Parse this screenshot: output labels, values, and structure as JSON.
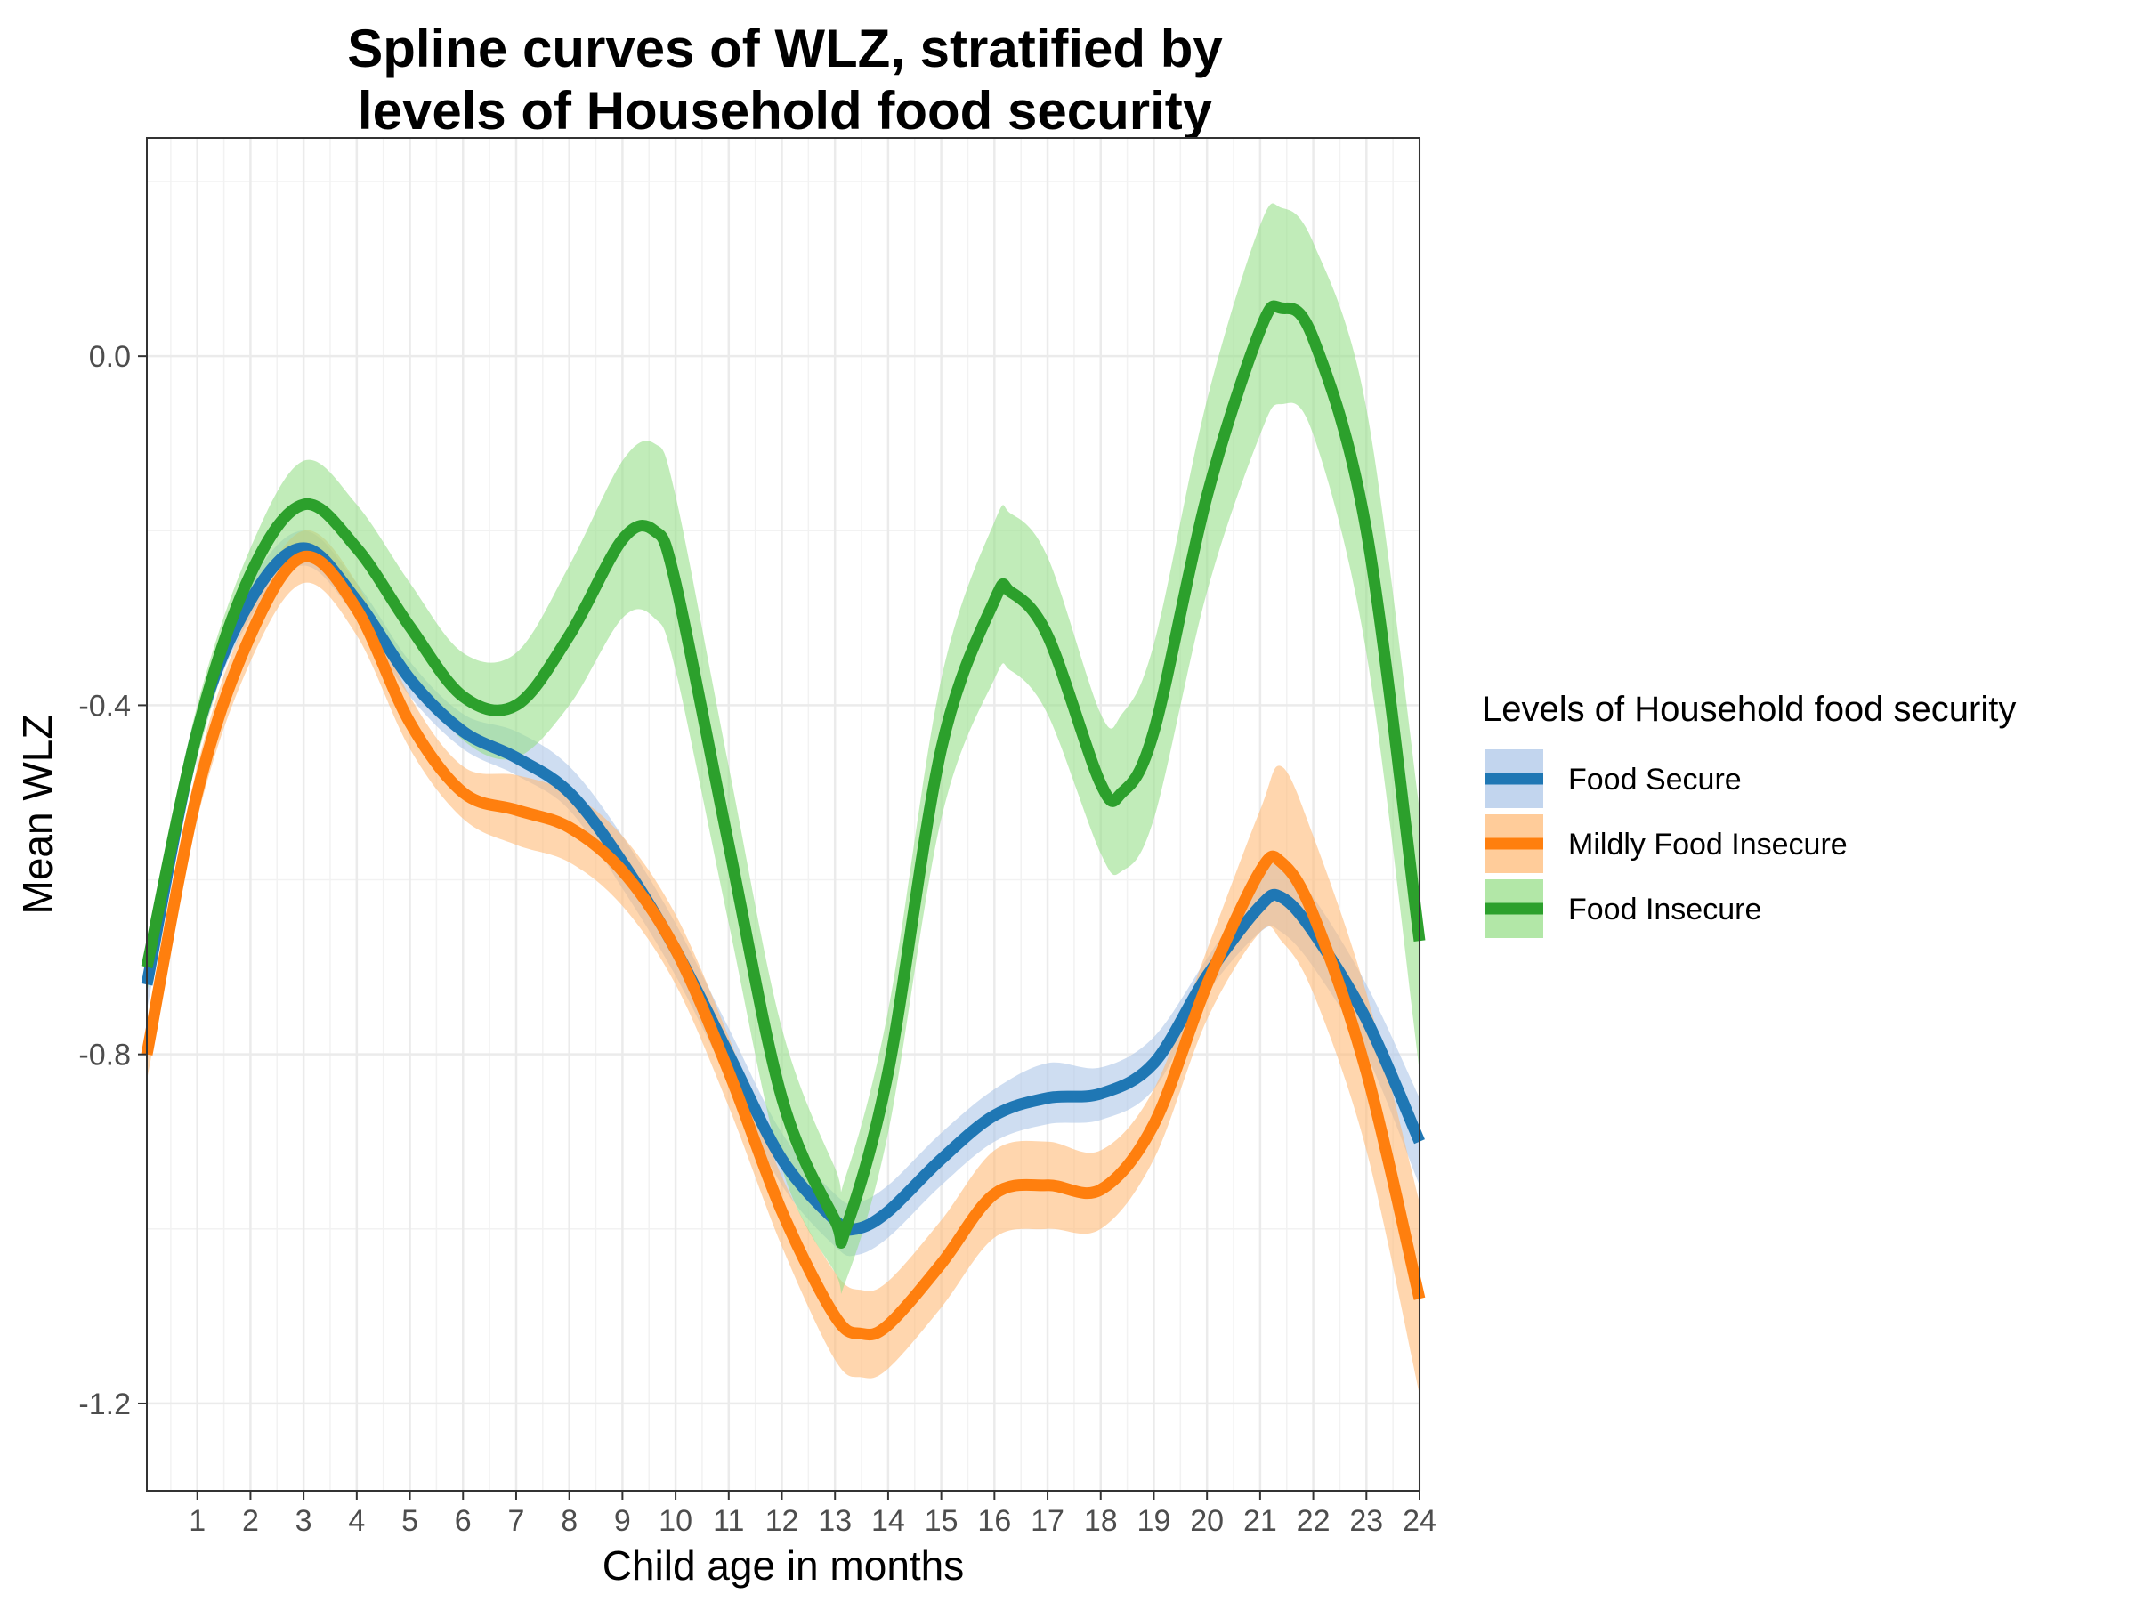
{
  "chart_data": {
    "type": "line",
    "title_lines": [
      "Spline curves of WLZ, stratified by",
      "levels of Household food security"
    ],
    "xlabel": "Child age in months",
    "ylabel": "Mean WLZ",
    "xlim": [
      0.05,
      24
    ],
    "ylim": [
      -1.3,
      0.25
    ],
    "x_ticks": [
      1,
      2,
      3,
      4,
      5,
      6,
      7,
      8,
      9,
      10,
      11,
      12,
      13,
      14,
      15,
      16,
      17,
      18,
      19,
      20,
      21,
      22,
      23,
      24
    ],
    "x_tick_labels": [
      "1",
      "2",
      "3",
      "4",
      "5",
      "6",
      "7",
      "8",
      "9",
      "10",
      "11",
      "12",
      "13",
      "14",
      "15",
      "16",
      "17",
      "18",
      "19",
      "20",
      "21",
      "22",
      "23",
      "24"
    ],
    "y_ticks": [
      0.0,
      -0.4,
      -0.8,
      -1.2
    ],
    "y_tick_labels": [
      "0.0",
      "-0.4",
      "-0.8",
      "-1.2"
    ],
    "grid": true,
    "legend": {
      "title": "Levels of Household food security",
      "position": "right"
    },
    "series": [
      {
        "name": "Food Secure",
        "color": "#1f77b4",
        "band_color": "#aec7e8",
        "x": [
          0.05,
          1,
          2,
          3,
          4,
          5,
          6,
          7,
          8,
          9,
          10,
          11,
          12,
          13,
          13.4,
          14,
          15,
          16,
          17,
          18,
          19,
          20,
          21,
          21.4,
          22,
          23,
          24
        ],
        "y": [
          -0.72,
          -0.43,
          -0.28,
          -0.22,
          -0.28,
          -0.37,
          -0.43,
          -0.46,
          -0.5,
          -0.58,
          -0.68,
          -0.8,
          -0.92,
          -0.99,
          -1.0,
          -0.98,
          -0.92,
          -0.87,
          -0.85,
          -0.845,
          -0.81,
          -0.71,
          -0.63,
          -0.62,
          -0.66,
          -0.76,
          -0.9
        ],
        "lower": [
          -0.75,
          -0.45,
          -0.3,
          -0.24,
          -0.3,
          -0.39,
          -0.45,
          -0.48,
          -0.52,
          -0.61,
          -0.71,
          -0.83,
          -0.95,
          -1.02,
          -1.03,
          -1.01,
          -0.95,
          -0.9,
          -0.88,
          -0.875,
          -0.84,
          -0.73,
          -0.66,
          -0.66,
          -0.7,
          -0.8,
          -0.95
        ],
        "upper": [
          -0.69,
          -0.41,
          -0.26,
          -0.2,
          -0.26,
          -0.35,
          -0.41,
          -0.43,
          -0.47,
          -0.55,
          -0.65,
          -0.77,
          -0.89,
          -0.96,
          -0.97,
          -0.95,
          -0.89,
          -0.84,
          -0.81,
          -0.815,
          -0.78,
          -0.69,
          -0.6,
          -0.58,
          -0.62,
          -0.72,
          -0.85
        ]
      },
      {
        "name": "Mildly Food Insecure",
        "color": "#ff7f0e",
        "band_color": "#ffbb78",
        "x": [
          0.05,
          1,
          2,
          3,
          4,
          5,
          6,
          7,
          8,
          9,
          10,
          11,
          12,
          13,
          13.5,
          14,
          15,
          16,
          17,
          18,
          19,
          20,
          21,
          21.4,
          22,
          23,
          24
        ],
        "y": [
          -0.8,
          -0.5,
          -0.32,
          -0.23,
          -0.29,
          -0.42,
          -0.5,
          -0.52,
          -0.54,
          -0.59,
          -0.68,
          -0.82,
          -0.98,
          -1.1,
          -1.12,
          -1.11,
          -1.04,
          -0.96,
          -0.95,
          -0.955,
          -0.88,
          -0.72,
          -0.59,
          -0.58,
          -0.64,
          -0.82,
          -1.08
        ],
        "lower": [
          -0.83,
          -0.53,
          -0.35,
          -0.26,
          -0.32,
          -0.45,
          -0.53,
          -0.56,
          -0.58,
          -0.63,
          -0.72,
          -0.86,
          -1.02,
          -1.15,
          -1.17,
          -1.16,
          -1.09,
          -1.01,
          -1.0,
          -1.0,
          -0.92,
          -0.76,
          -0.66,
          -0.67,
          -0.73,
          -0.91,
          -1.19
        ],
        "upper": [
          -0.77,
          -0.47,
          -0.29,
          -0.2,
          -0.26,
          -0.39,
          -0.47,
          -0.48,
          -0.5,
          -0.55,
          -0.64,
          -0.78,
          -0.94,
          -1.05,
          -1.07,
          -1.06,
          -0.99,
          -0.91,
          -0.9,
          -0.91,
          -0.84,
          -0.68,
          -0.52,
          -0.47,
          -0.55,
          -0.73,
          -0.97
        ]
      },
      {
        "name": "Food Insecure",
        "color": "#2ca02c",
        "band_color": "#98df8a",
        "x": [
          0.05,
          1,
          2,
          3,
          4,
          5,
          6,
          7,
          8,
          9,
          9.6,
          10,
          11,
          12,
          13,
          13.2,
          14,
          15,
          16,
          16.3,
          17,
          18,
          18.4,
          19,
          20,
          21,
          21.4,
          22,
          23,
          24
        ],
        "y": [
          -0.7,
          -0.43,
          -0.25,
          -0.17,
          -0.22,
          -0.31,
          -0.39,
          -0.4,
          -0.32,
          -0.21,
          -0.2,
          -0.26,
          -0.56,
          -0.85,
          -0.99,
          -1.0,
          -0.82,
          -0.45,
          -0.28,
          -0.27,
          -0.32,
          -0.49,
          -0.5,
          -0.43,
          -0.16,
          0.03,
          0.055,
          0.02,
          -0.2,
          -0.67
        ],
        "lower": [
          -0.73,
          -0.46,
          -0.28,
          -0.22,
          -0.27,
          -0.36,
          -0.44,
          -0.46,
          -0.4,
          -0.3,
          -0.3,
          -0.36,
          -0.65,
          -0.93,
          -1.05,
          -1.06,
          -0.89,
          -0.53,
          -0.37,
          -0.36,
          -0.41,
          -0.57,
          -0.59,
          -0.53,
          -0.27,
          -0.09,
          -0.055,
          -0.09,
          -0.34,
          -0.82
        ],
        "upper": [
          -0.67,
          -0.4,
          -0.22,
          -0.12,
          -0.17,
          -0.26,
          -0.34,
          -0.34,
          -0.24,
          -0.12,
          -0.1,
          -0.16,
          -0.47,
          -0.77,
          -0.93,
          -0.94,
          -0.75,
          -0.37,
          -0.19,
          -0.18,
          -0.23,
          -0.41,
          -0.41,
          -0.33,
          -0.05,
          0.15,
          0.17,
          0.13,
          -0.06,
          -0.52
        ]
      }
    ]
  }
}
